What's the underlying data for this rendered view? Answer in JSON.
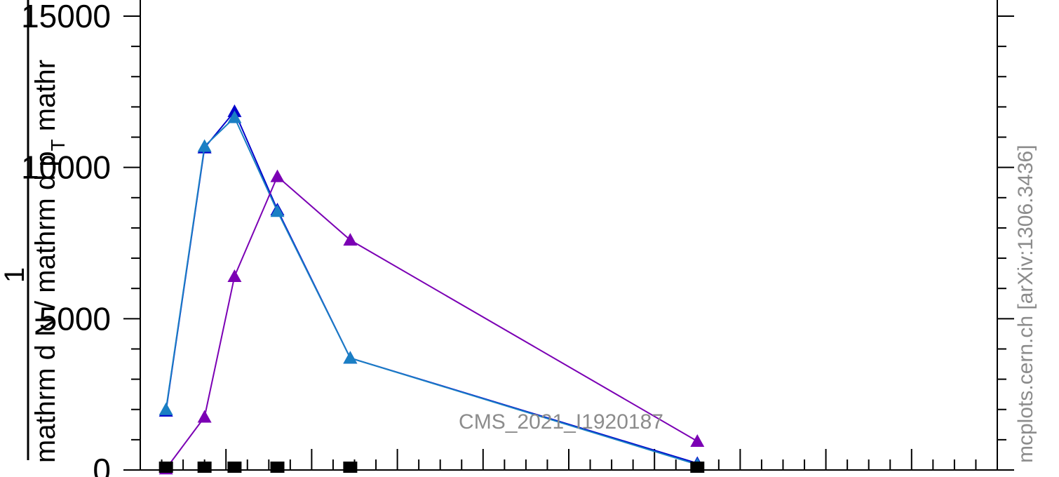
{
  "chart_data": {
    "type": "line",
    "ylabel_numerator": "1",
    "ylabel_denominator": "mathrm d N / mathrm d p",
    "ylabel_subscript": "T",
    "ylabel_tail": " mathr",
    "watermark": "CMS_2021_I1920187",
    "side_label": "mcplots.cern.ch [arXiv:1306.3436]",
    "y_ticks": [
      {
        "value": 0,
        "label": "0"
      },
      {
        "value": 5000,
        "label": "5000"
      },
      {
        "value": 10000,
        "label": "10000"
      },
      {
        "value": 15000,
        "label": "15000"
      }
    ],
    "ylim": [
      0,
      15500
    ],
    "xlim": [
      0,
      1
    ],
    "grid": false,
    "series": [
      {
        "color": "#0000cc",
        "x": [
          0.03,
          0.075,
          0.11,
          0.16,
          0.245,
          0.65
        ],
        "y": [
          1950,
          10650,
          11850,
          8600,
          3700,
          220
        ]
      },
      {
        "color": "#1a7fc4",
        "x": [
          0.03,
          0.075,
          0.11,
          0.16,
          0.245,
          0.65
        ],
        "y": [
          2000,
          10700,
          11650,
          8550,
          3700,
          180
        ]
      },
      {
        "color": "#7b00b4",
        "x": [
          0.03,
          0.075,
          0.11,
          0.16,
          0.245,
          0.65
        ],
        "y": [
          40,
          1750,
          6400,
          9700,
          7600,
          950
        ]
      }
    ],
    "data_markers": {
      "color": "#000000",
      "x": [
        0.03,
        0.075,
        0.11,
        0.16,
        0.245,
        0.65
      ],
      "y": [
        0,
        0,
        0,
        0,
        0,
        0
      ]
    }
  }
}
